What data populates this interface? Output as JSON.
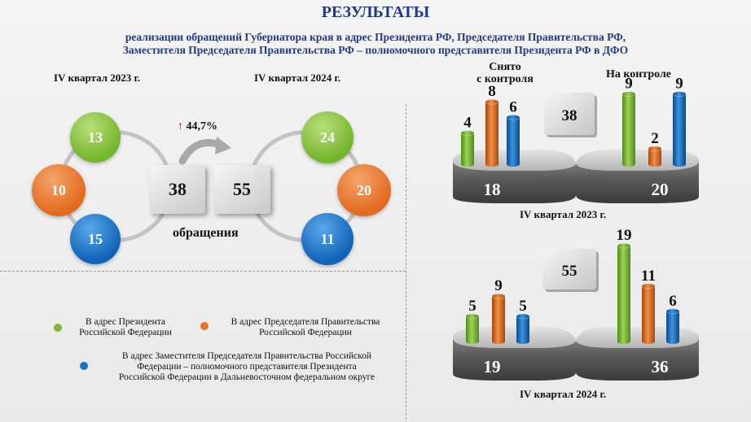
{
  "header": {
    "title": "РЕЗУЛЬТАТЫ",
    "subtitle_line1": "реализации обращений Губернатора края в адрес Президента РФ, Председателя Правительства РФ,",
    "subtitle_line2": "Заместителя Председателя Правительства РФ – полномочного представителя Президента РФ в ДФО"
  },
  "left": {
    "quarter_2023": "IV квартал 2023 г.",
    "quarter_2024": "IV квартал 2024 г.",
    "q2023": {
      "president": "13",
      "chairman": "10",
      "deputy": "15",
      "total": "38"
    },
    "q2024": {
      "president": "24",
      "chairman": "20",
      "deputy": "11",
      "total": "55"
    },
    "growth": "44,7%",
    "caption": "обращения"
  },
  "legend": {
    "president": "В адрес Президента\nРоссийской Федерации",
    "president_l1": "В адрес Президента",
    "president_l2": "Российской Федерации",
    "chairman_l1": "В адрес Председателя Правительства",
    "chairman_l2": "Российской Федерации",
    "deputy_l1": "В адрес Заместителя Председателя Правительства Российской",
    "deputy_l2": "Федерации – полномочного представителя Президента",
    "deputy_l3": "Российской Федерации в Дальневосточном федеральном округе",
    "colors": {
      "president": "#7dbb34",
      "chairman": "#e8742a",
      "deputy": "#1a72c4"
    }
  },
  "right": {
    "removed_l1": "Снято",
    "removed_l2": "с контроля",
    "on_control": "На контроле"
  },
  "chart_data": [
    {
      "type": "bar",
      "title": "IV квартал 2023 г.",
      "total": 38,
      "groups": [
        {
          "name": "Снято с контроля",
          "total": 18,
          "values": [
            4,
            8,
            6
          ]
        },
        {
          "name": "На контроле",
          "total": 20,
          "values": [
            9,
            2,
            9
          ]
        }
      ],
      "series_colors": [
        "#7dbb34",
        "#e8742a",
        "#1a72c4"
      ]
    },
    {
      "type": "bar",
      "title": "IV квартал 2024 г.",
      "total": 55,
      "groups": [
        {
          "name": "Снято с контроля",
          "total": 19,
          "values": [
            5,
            9,
            5
          ]
        },
        {
          "name": "На контроле",
          "total": 36,
          "values": [
            19,
            11,
            6
          ]
        }
      ],
      "series_colors": [
        "#7dbb34",
        "#e8742a",
        "#1a72c4"
      ]
    }
  ]
}
